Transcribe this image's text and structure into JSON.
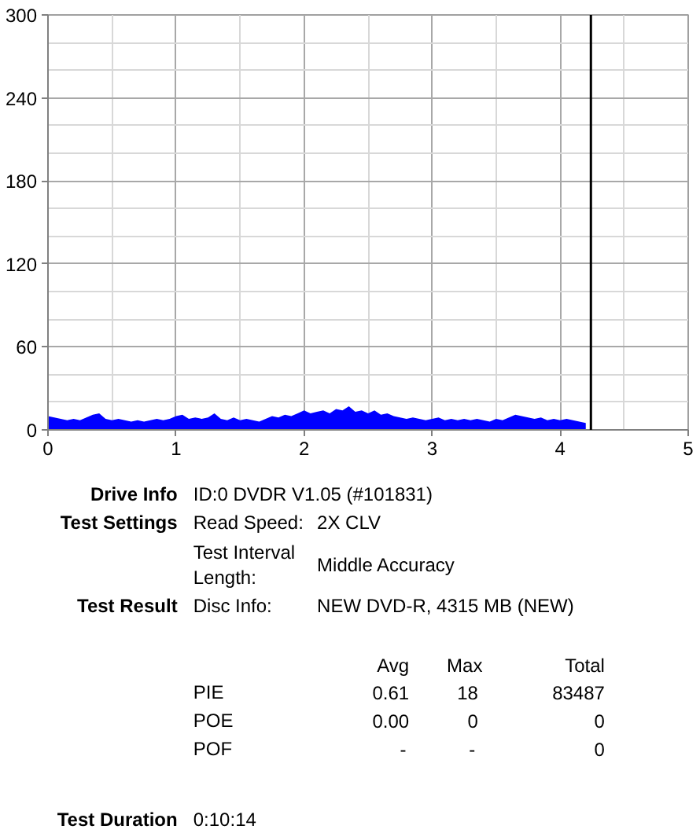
{
  "chart_data": {
    "type": "area",
    "x": [
      0,
      0.05,
      0.1,
      0.15,
      0.2,
      0.25,
      0.3,
      0.35,
      0.4,
      0.45,
      0.5,
      0.55,
      0.6,
      0.65,
      0.7,
      0.75,
      0.8,
      0.85,
      0.9,
      0.95,
      1,
      1.05,
      1.1,
      1.15,
      1.2,
      1.25,
      1.3,
      1.35,
      1.4,
      1.45,
      1.5,
      1.55,
      1.6,
      1.65,
      1.7,
      1.75,
      1.8,
      1.85,
      1.9,
      1.95,
      2,
      2.05,
      2.1,
      2.15,
      2.2,
      2.25,
      2.3,
      2.35,
      2.4,
      2.45,
      2.5,
      2.55,
      2.6,
      2.65,
      2.7,
      2.75,
      2.8,
      2.85,
      2.9,
      2.95,
      3,
      3.05,
      3.1,
      3.15,
      3.2,
      3.25,
      3.3,
      3.35,
      3.4,
      3.45,
      3.5,
      3.55,
      3.6,
      3.65,
      3.7,
      3.75,
      3.8,
      3.85,
      3.9,
      3.95,
      4,
      4.05,
      4.1,
      4.15,
      4.2
    ],
    "series": [
      {
        "color": "#0000ff",
        "values": [
          10,
          9,
          8,
          7,
          8,
          7,
          9,
          11,
          12,
          8,
          7,
          8,
          7,
          6,
          7,
          6,
          7,
          8,
          7,
          8,
          10,
          11,
          8,
          9,
          8,
          9,
          12,
          8,
          7,
          9,
          7,
          8,
          7,
          6,
          8,
          10,
          9,
          11,
          10,
          12,
          14,
          12,
          13,
          14,
          12,
          15,
          14,
          17,
          13,
          14,
          12,
          14,
          11,
          12,
          10,
          9,
          8,
          9,
          8,
          7,
          8,
          9,
          7,
          8,
          7,
          8,
          7,
          8,
          7,
          6,
          8,
          7,
          9,
          11,
          10,
          9,
          8,
          9,
          7,
          8,
          7,
          8,
          7,
          6,
          5
        ]
      }
    ],
    "xlim": [
      0,
      5
    ],
    "ylim": [
      0,
      300
    ],
    "xticks": [
      0,
      {
        "value": 0.5,
        "label": null
      },
      1,
      {
        "value": 1.5,
        "label": null
      },
      2,
      {
        "value": 2.5,
        "label": null
      },
      3,
      {
        "value": 3.5,
        "label": null
      },
      4,
      {
        "value": 4.5,
        "label": null
      },
      5
    ],
    "yticks": [
      0,
      {
        "value": 20,
        "label": null
      },
      {
        "value": 40,
        "label": null
      },
      60,
      {
        "value": 80,
        "label": null
      },
      {
        "value": 100,
        "label": null
      },
      120,
      {
        "value": 140,
        "label": null
      },
      {
        "value": 160,
        "label": null
      },
      180,
      {
        "value": 200,
        "label": null
      },
      {
        "value": 220,
        "label": null
      },
      240,
      {
        "value": 260,
        "label": null
      },
      {
        "value": 280,
        "label": null
      },
      300
    ],
    "grid": true,
    "ref_lines": [
      {
        "axis": "x",
        "value": 4.24,
        "color": "#000000"
      }
    ],
    "annotations": [
      "Drive Info",
      "ID:0 DVDR V1.05 (#101831)",
      "Test Settings",
      "Read Speed:",
      "2X CLV",
      "Test Interval Length:",
      "Middle Accuracy",
      "Test Result",
      "Disc Info:",
      "NEW DVD-R, 4315 MB (NEW)",
      "Avg",
      "Max",
      "Total",
      "PIE",
      "0.61",
      "18",
      "83487",
      "POE",
      "0.00",
      "0",
      "0",
      "POF",
      "-",
      "-",
      "0",
      "Test Duration",
      "0:10:14"
    ]
  }
}
